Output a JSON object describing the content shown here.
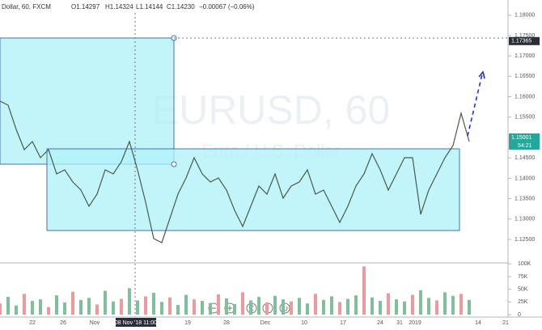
{
  "chart_data": {
    "type": "line",
    "header": {
      "symbol": "Dollar, 60, FXCM",
      "open": "O1.14297",
      "high": "H1.14324",
      "low": "L1.14144",
      "close": "C1.14230",
      "change": "−0.00067 (−0.06%)"
    },
    "watermark": "EURUSD, 60",
    "watermark_subtitle": "Euro / U.S. Dollar",
    "color": "#4a5a4a",
    "values": [
      1.15893,
      1.15794,
      1.15198,
      1.14702,
      1.14901,
      1.14504,
      1.14702,
      1.14107,
      1.14206,
      1.13909,
      1.1371,
      1.13313,
      1.13611,
      1.14206,
      1.14107,
      1.14405,
      1.14901,
      1.14206,
      1.13413,
      1.1252,
      1.12421,
      1.13016,
      1.13611,
      1.14008,
      1.14504,
      1.14107,
      1.13909,
      1.14008,
      1.1371,
      1.13214,
      1.12817,
      1.13313,
      1.1381,
      1.13611,
      1.14107,
      1.13512,
      1.1381,
      1.13909,
      1.14206,
      1.13611,
      1.1371,
      1.13313,
      1.12917,
      1.13313,
      1.1381,
      1.14107,
      1.14603,
      1.14206,
      1.1371,
      1.14107,
      1.14504,
      1.14504,
      1.13115,
      1.1371,
      1.14107,
      1.14504,
      1.14802,
      1.15595,
      1.14901
    ],
    "ylim": [
      1.11925,
      1.18373
    ],
    "yticks": [
      {
        "value": 1.18,
        "label": "1.18000"
      },
      {
        "value": 1.175,
        "label": "1.17500"
      },
      {
        "value": 1.17,
        "label": "1.17000"
      },
      {
        "value": 1.165,
        "label": "1.16500"
      },
      {
        "value": 1.16,
        "label": "1.16000"
      },
      {
        "value": 1.155,
        "label": "1.15500"
      },
      {
        "value": 1.145,
        "label": "1.14500"
      },
      {
        "value": 1.14,
        "label": "1.14000"
      },
      {
        "value": 1.135,
        "label": "1.13500"
      },
      {
        "value": 1.13,
        "label": "1.13000"
      },
      {
        "value": 1.125,
        "label": "1.12500"
      }
    ],
    "price_labels": [
      {
        "value": 1.17365,
        "label": "1.17365",
        "color": "#2a2e39"
      },
      {
        "value": 1.15001,
        "label": "1.15001",
        "color": "#26a69a"
      }
    ],
    "countdown": "54:21",
    "volume": {
      "color": "#7fbf9a",
      "values": [
        22000,
        35000,
        18000,
        41000,
        27000,
        30000,
        15000,
        38000,
        24000,
        45000,
        29000,
        33000,
        20000,
        47000,
        26000,
        31000,
        52000,
        28000,
        36000,
        43000,
        25000,
        34000,
        19000,
        39000,
        30000,
        27000,
        23000,
        40000,
        32000,
        21000,
        44000,
        28000,
        35000,
        24000,
        37000,
        30000,
        26000,
        33000,
        22000,
        41000,
        29000,
        36000,
        25000,
        31000,
        38000,
        95000,
        34000,
        27000,
        42000,
        30000,
        26000,
        39000,
        48000,
        33000,
        28000,
        44000,
        37000,
        41000,
        29000
      ],
      "ylim": [
        0,
        102000
      ],
      "yticks": [
        {
          "value": 100000,
          "label": "100K"
        },
        {
          "value": 75000,
          "label": "75K"
        },
        {
          "value": 50000,
          "label": "50K"
        },
        {
          "value": 25000,
          "label": "25K"
        },
        0
      ]
    },
    "x_labels": [
      "22",
      "26",
      "Nov",
      "19",
      "28",
      "Dec",
      "10",
      "17",
      "24",
      "31",
      "2019",
      "14",
      "21"
    ],
    "crosshair_label": "08 Nov '18 11:00"
  }
}
